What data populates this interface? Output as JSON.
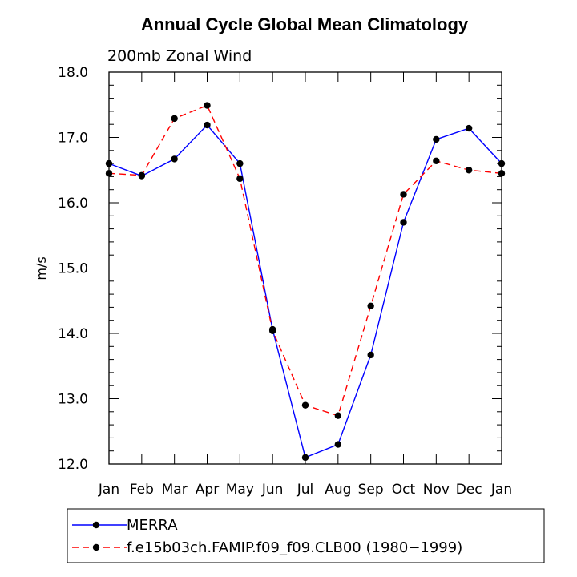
{
  "chart_data": {
    "type": "line",
    "title": "Annual Cycle Global Mean Climatology",
    "subtitle": "200mb Zonal Wind",
    "ylabel": "m/s",
    "xlabel": "",
    "categories": [
      "Jan",
      "Feb",
      "Mar",
      "Apr",
      "May",
      "Jun",
      "Jul",
      "Aug",
      "Sep",
      "Oct",
      "Nov",
      "Dec",
      "Jan"
    ],
    "ylim": [
      12.0,
      18.0
    ],
    "yticks": [
      "12.0",
      "13.0",
      "14.0",
      "15.0",
      "16.0",
      "17.0",
      "18.0"
    ],
    "grid": false,
    "legend_position": "bottom",
    "series": [
      {
        "name": "MERRA",
        "color": "#0000ff",
        "line_style": "solid",
        "marker": "filled-circle",
        "values": [
          16.6,
          16.41,
          16.67,
          17.19,
          16.6,
          14.06,
          12.1,
          12.3,
          13.67,
          15.7,
          16.97,
          17.14,
          16.6
        ]
      },
      {
        "name": "f.e15b03ch.FAMIP.f09_f09.CLB00 (1980−1999)",
        "color": "#ff0000",
        "line_style": "dashed",
        "marker": "filled-circle",
        "values": [
          16.45,
          16.42,
          17.29,
          17.49,
          16.37,
          14.04,
          12.9,
          12.74,
          14.42,
          16.13,
          16.64,
          16.5,
          16.45
        ]
      }
    ]
  }
}
